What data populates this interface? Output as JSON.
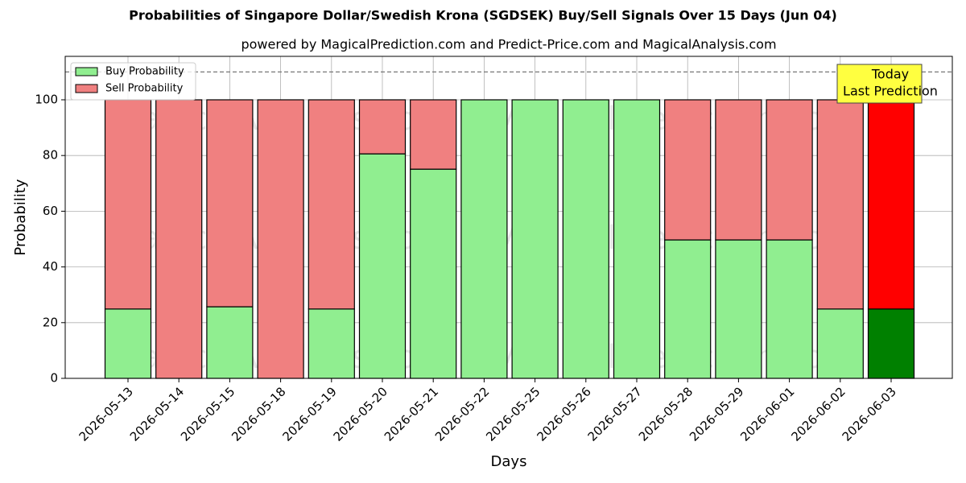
{
  "chart_data": {
    "type": "stacked_bar",
    "title": "Probabilities of Singapore Dollar/Swedish Krona (SGDSEK) Buy/Sell Signals Over 15 Days (Jun 04)",
    "subtitle": "powered by MagicalPrediction.com and Predict-Price.com and MagicalAnalysis.com",
    "xlabel": "Days",
    "ylabel": "Probability",
    "categories": [
      "2026-05-13",
      "2026-05-14",
      "2026-05-15",
      "2026-05-18",
      "2026-05-19",
      "2026-05-20",
      "2026-05-21",
      "2026-05-22",
      "2026-05-25",
      "2026-05-26",
      "2026-05-27",
      "2026-05-28",
      "2026-05-29",
      "2026-06-01",
      "2026-06-02",
      "2026-06-03"
    ],
    "series": [
      {
        "name": "Buy Probability",
        "color": "#90ee90",
        "colors": [
          "#90ee90",
          "#90ee90",
          "#90ee90",
          "#90ee90",
          "#90ee90",
          "#90ee90",
          "#90ee90",
          "#90ee90",
          "#90ee90",
          "#90ee90",
          "#90ee90",
          "#90ee90",
          "#90ee90",
          "#90ee90",
          "#90ee90",
          "#008000"
        ],
        "values": [
          24.9,
          0,
          25.7,
          0,
          24.9,
          80.6,
          75.1,
          100,
          100,
          100,
          100,
          49.7,
          49.7,
          49.7,
          24.9,
          24.9
        ]
      },
      {
        "name": "Sell Probability",
        "color": "#f08080",
        "colors": [
          "#f08080",
          "#f08080",
          "#f08080",
          "#f08080",
          "#f08080",
          "#f08080",
          "#f08080",
          "#f08080",
          "#f08080",
          "#f08080",
          "#f08080",
          "#f08080",
          "#f08080",
          "#f08080",
          "#f08080",
          "#ff0000"
        ],
        "values": [
          75.1,
          100,
          74.3,
          100,
          75.1,
          19.4,
          24.9,
          0,
          0,
          0,
          0,
          50.3,
          50.3,
          50.3,
          75.1,
          75.1
        ]
      }
    ],
    "ylim": [
      0,
      115.6
    ],
    "yticks": [
      0,
      20,
      40,
      60,
      80,
      100
    ],
    "grid": true,
    "hline": 110,
    "legend": "upper left",
    "annotation": [
      "Today",
      "Last Prediction"
    ],
    "watermarks": [
      "MagicalAnalysis.com",
      "MagicalPrediction.com"
    ]
  }
}
